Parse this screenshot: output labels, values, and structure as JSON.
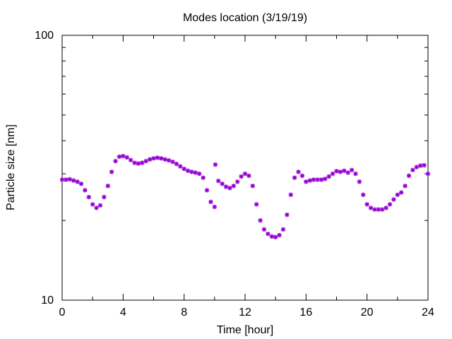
{
  "chart_data": {
    "type": "scatter",
    "title": "Modes location (3/19/19)",
    "xlabel": "Time [hour]",
    "ylabel": "Particle size [nm]",
    "xlim": [
      0,
      24
    ],
    "ylim": [
      10,
      100
    ],
    "yscale": "log",
    "grid": false,
    "marker": "asterisk",
    "xticks": [
      "0",
      "4",
      "8",
      "12",
      "16",
      "20",
      "24"
    ],
    "yticks": [
      "10",
      "100"
    ],
    "series": [
      {
        "color": "#9400d3",
        "x": [
          0,
          0.25,
          0.5,
          0.75,
          1.0,
          1.25,
          1.5,
          1.75,
          2.0,
          2.25,
          2.5,
          2.75,
          3.0,
          3.25,
          3.5,
          3.75,
          4.0,
          4.25,
          4.5,
          4.75,
          5.0,
          5.25,
          5.5,
          5.75,
          6.0,
          6.25,
          6.5,
          6.75,
          7.0,
          7.25,
          7.5,
          7.75,
          8.0,
          8.25,
          8.5,
          8.75,
          9.0,
          9.25,
          9.5,
          9.75,
          10.0,
          10.05,
          10.25,
          10.5,
          10.75,
          11.0,
          11.25,
          11.5,
          11.75,
          12.0,
          12.25,
          12.5,
          12.75,
          13.0,
          13.25,
          13.5,
          13.75,
          14.0,
          14.25,
          14.5,
          14.75,
          15.0,
          15.25,
          15.5,
          15.75,
          16.0,
          16.25,
          16.5,
          16.75,
          17.0,
          17.25,
          17.5,
          17.75,
          18.0,
          18.25,
          18.5,
          18.75,
          19.0,
          19.25,
          19.5,
          19.75,
          20.0,
          20.25,
          20.5,
          20.75,
          21.0,
          21.25,
          21.5,
          21.75,
          22.0,
          22.25,
          22.5,
          22.75,
          23.0,
          23.25,
          23.5,
          23.75,
          24.0
        ],
        "y": [
          28.5,
          28.5,
          28.6,
          28.3,
          28.0,
          27.5,
          26.0,
          24.5,
          23.0,
          22.3,
          22.8,
          24.5,
          27.0,
          30.5,
          33.5,
          34.8,
          35.0,
          34.6,
          33.8,
          33.0,
          32.8,
          33.0,
          33.5,
          34.0,
          34.3,
          34.5,
          34.3,
          34.0,
          33.7,
          33.3,
          32.7,
          32.0,
          31.3,
          30.8,
          30.5,
          30.3,
          30.0,
          29.0,
          26.0,
          23.5,
          22.5,
          32.5,
          28.2,
          27.5,
          26.8,
          26.5,
          27.0,
          28.0,
          29.3,
          30.0,
          29.5,
          27.0,
          23.0,
          20.0,
          18.5,
          17.8,
          17.4,
          17.3,
          17.6,
          18.5,
          21.0,
          25.0,
          29.0,
          30.5,
          29.5,
          28.0,
          28.3,
          28.5,
          28.5,
          28.5,
          28.7,
          29.3,
          30.0,
          30.7,
          30.5,
          30.8,
          30.3,
          31.0,
          30.0,
          28.0,
          25.0,
          23.0,
          22.3,
          22.0,
          22.0,
          22.0,
          22.3,
          23.0,
          24.0,
          25.0,
          25.5,
          27.0,
          29.5,
          31.0,
          31.8,
          32.2,
          32.3,
          30.0
        ]
      }
    ]
  }
}
